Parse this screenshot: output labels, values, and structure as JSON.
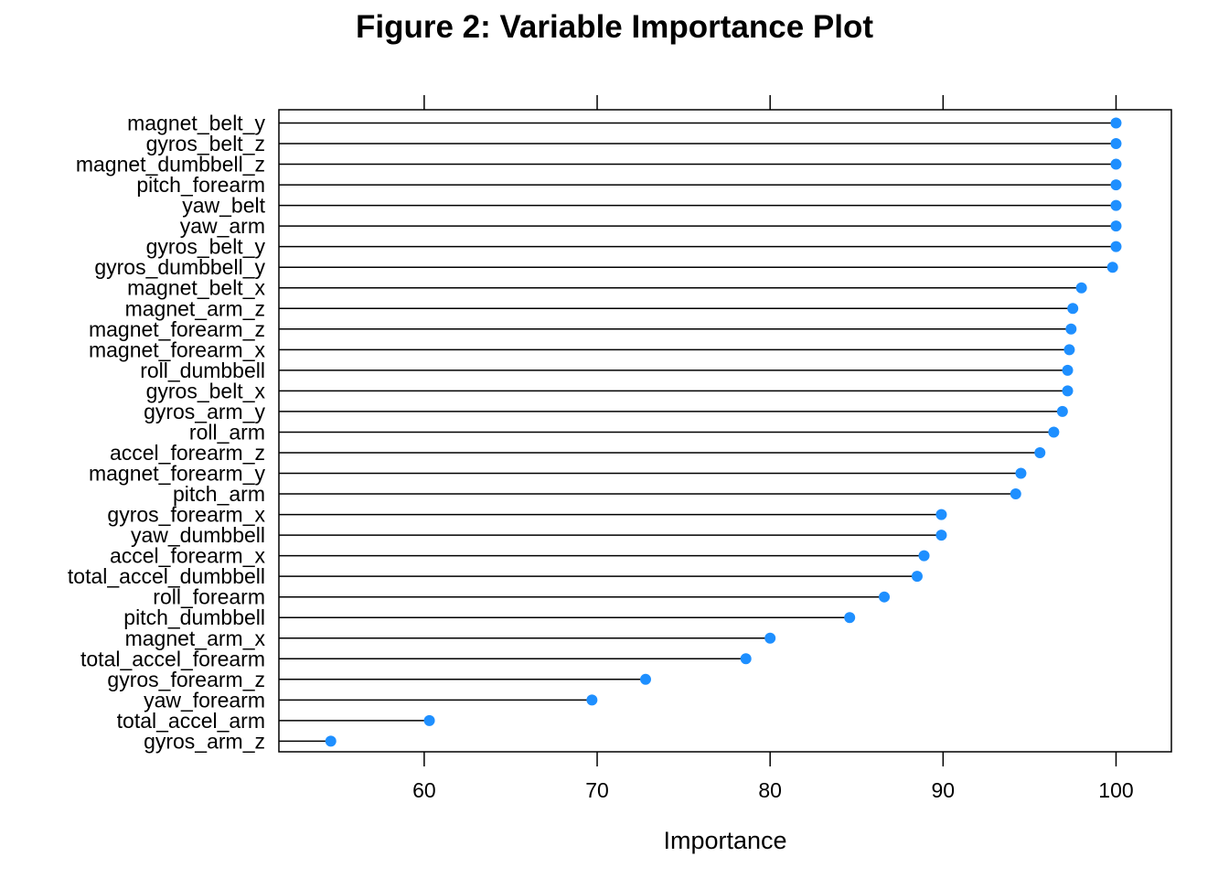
{
  "chart_data": {
    "type": "dot",
    "title": "Figure 2: Variable Importance Plot",
    "xlabel": "Importance",
    "ylabel": "",
    "xlim": [
      51.6,
      103.2
    ],
    "xticks": [
      60,
      70,
      80,
      90,
      100
    ],
    "grid": false,
    "point_color": "#1E8FFF",
    "line_color": "#000000",
    "categories": [
      "magnet_belt_y",
      "gyros_belt_z",
      "magnet_dumbbell_z",
      "pitch_forearm",
      "yaw_belt",
      "yaw_arm",
      "gyros_belt_y",
      "gyros_dumbbell_y",
      "magnet_belt_x",
      "magnet_arm_z",
      "magnet_forearm_z",
      "magnet_forearm_x",
      "roll_dumbbell",
      "gyros_belt_x",
      "gyros_arm_y",
      "roll_arm",
      "accel_forearm_z",
      "magnet_forearm_y",
      "pitch_arm",
      "gyros_forearm_x",
      "yaw_dumbbell",
      "accel_forearm_x",
      "total_accel_dumbbell",
      "roll_forearm",
      "pitch_dumbbell",
      "magnet_arm_x",
      "total_accel_forearm",
      "gyros_forearm_z",
      "yaw_forearm",
      "total_accel_arm",
      "gyros_arm_z"
    ],
    "values": [
      100.0,
      100.0,
      100.0,
      100.0,
      100.0,
      100.0,
      100.0,
      99.8,
      98.0,
      97.5,
      97.4,
      97.3,
      97.2,
      97.2,
      96.9,
      96.4,
      95.6,
      94.5,
      94.2,
      89.9,
      89.9,
      88.9,
      88.5,
      86.6,
      84.6,
      80.0,
      78.6,
      72.8,
      69.7,
      60.3,
      54.6
    ]
  }
}
